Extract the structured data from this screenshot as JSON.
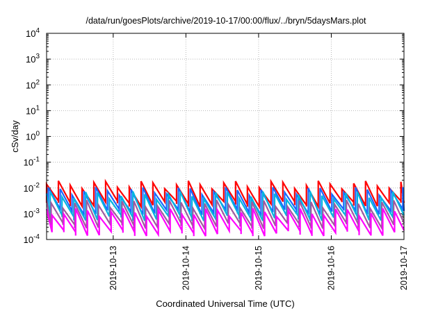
{
  "chart_data": {
    "type": "line",
    "title": "/data/run/goesPlots/archive/2019-10-17/00:00/flux/../bryn/5daysMars.plot",
    "xlabel": "Coordinated Universal Time (UTC)",
    "ylabel": "cSv/day",
    "yscale": "log",
    "ylim": [
      0.0001,
      10000
    ],
    "xlim": [
      "2019-10-12T02:00",
      "2019-10-17T00:00"
    ],
    "x_ticks": [
      "2019-10-13",
      "2019-10-14",
      "2019-10-15",
      "2019-10-16",
      "2019-10-17"
    ],
    "y_ticks": [
      {
        "base": "10",
        "exp": "-4"
      },
      {
        "base": "10",
        "exp": "-3"
      },
      {
        "base": "10",
        "exp": "-2"
      },
      {
        "base": "10",
        "exp": "-1"
      },
      {
        "base": "10",
        "exp": "0"
      },
      {
        "base": "10",
        "exp": "1"
      },
      {
        "base": "10",
        "exp": "2"
      },
      {
        "base": "10",
        "exp": "3"
      },
      {
        "base": "10",
        "exp": "4"
      }
    ],
    "grid": true,
    "legend": "none",
    "series": [
      {
        "color": "#ff0000",
        "peak": 0.014,
        "trough": 0.0025,
        "lag_hours": 0
      },
      {
        "color": "#1a66ff",
        "peak": 0.008,
        "trough": 0.0012,
        "lag_hours": 0.6
      },
      {
        "color": "#00b5e0",
        "peak": 0.0055,
        "trough": 0.0007,
        "lag_hours": 1.2
      },
      {
        "color": "#a05aa0",
        "peak": 0.0025,
        "trough": 0.00035,
        "lag_hours": 1.5
      },
      {
        "color": "#ff00ff",
        "peak": 0.0012,
        "trough": 0.00018,
        "lag_hours": 1.8
      }
    ],
    "cycle_hours": 3.9
  }
}
